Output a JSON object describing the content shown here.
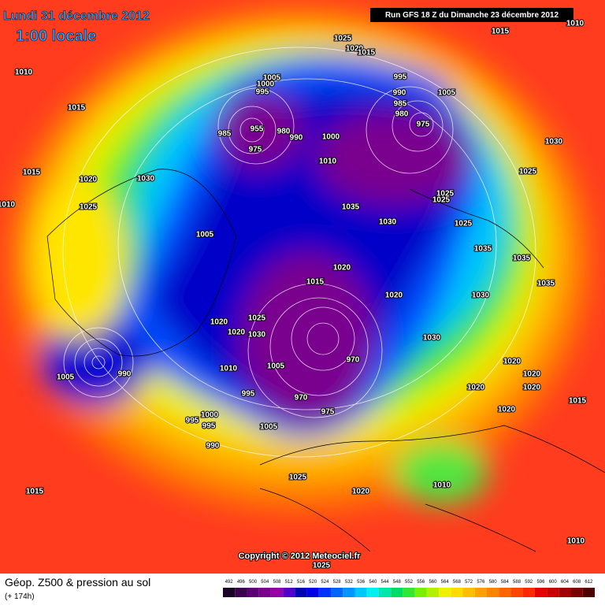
{
  "header": {
    "date": "Lundi 31 décembre 2012",
    "time": "1:00 locale",
    "run": "Run GFS 18 Z du Dimanche 23 décembre 2012"
  },
  "copyright": "Copyright © 2012 Meteociel.fr",
  "footer": {
    "title": "Géop. Z500 & pression au sol",
    "lead": "(+ 174h)"
  },
  "colorbar": {
    "ticks": [
      492,
      496,
      500,
      504,
      508,
      512,
      516,
      520,
      524,
      528,
      532,
      536,
      540,
      544,
      548,
      552,
      556,
      560,
      564,
      568,
      572,
      576,
      580,
      584,
      588,
      592,
      596,
      600,
      604,
      608,
      612
    ],
    "colors": [
      "#1a0026",
      "#3c0050",
      "#5a0070",
      "#78008c",
      "#9600a8",
      "#5000c8",
      "#0000b4",
      "#0000e6",
      "#0032ff",
      "#0064ff",
      "#0096ff",
      "#00c8ff",
      "#00f0f0",
      "#00e6aa",
      "#00dc64",
      "#32e632",
      "#78f000",
      "#b4f000",
      "#f0f000",
      "#ffdc00",
      "#ffbe00",
      "#ffa000",
      "#ff8200",
      "#ff6400",
      "#ff4600",
      "#ff2800",
      "#e60000",
      "#c80000",
      "#a00000",
      "#780000",
      "#500000"
    ]
  },
  "isobar_labels": [
    1010,
    1015,
    1015,
    1020,
    1025,
    1030,
    1010,
    1025,
    1020,
    1015,
    1015,
    1010,
    1005,
    1000,
    995,
    955,
    985,
    975,
    980,
    990,
    1000,
    1010,
    995,
    990,
    985,
    980,
    975,
    1005,
    1030,
    1025,
    1025,
    1025,
    1025,
    1035,
    1030,
    1005,
    1035,
    1035,
    1035,
    1020,
    1015,
    1020,
    1030,
    1025,
    1020,
    1020,
    1030,
    1030,
    970,
    1005,
    1010,
    995,
    970,
    975,
    1020,
    1020,
    1020,
    1020,
    1020,
    1015,
    1000,
    995,
    995,
    990,
    1005,
    990,
    1005,
    1025,
    1020,
    1010,
    1015,
    1010,
    1025
  ]
}
